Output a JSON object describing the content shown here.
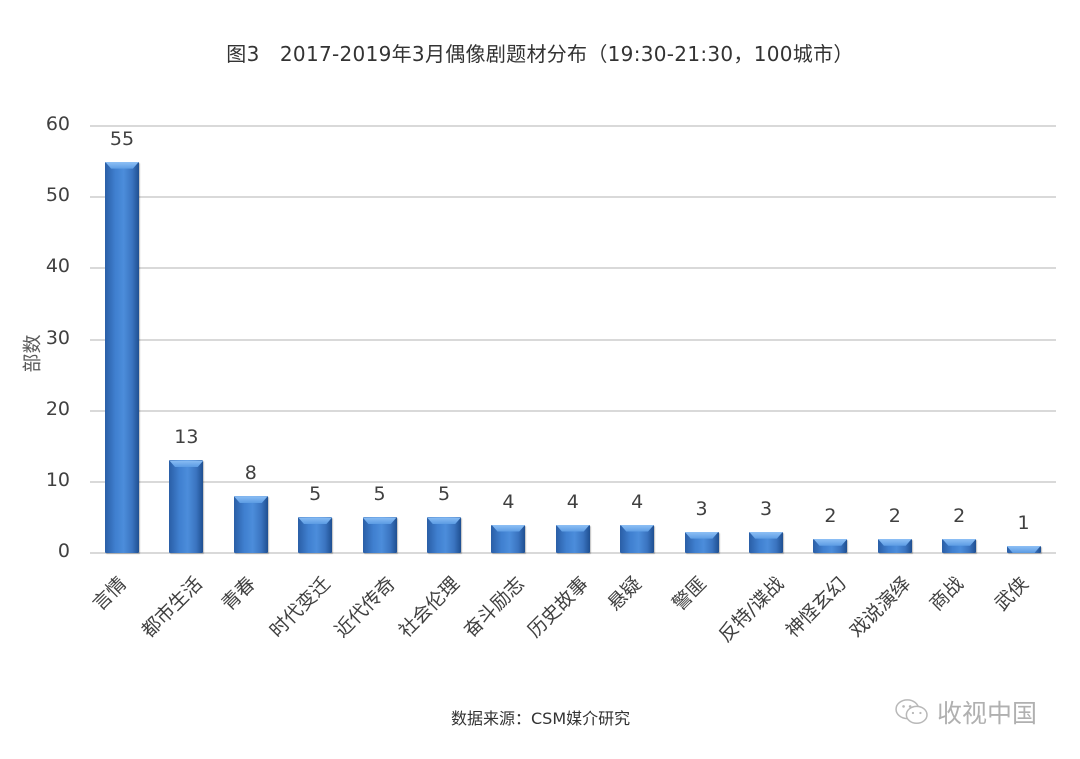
{
  "title": "图3　2017-2019年3月偶像剧题材分布（19:30-21:30，100城市）",
  "footer": {
    "source": "数据来源：CSM媒介研究",
    "watermark": "收视中国",
    "watermark_icon": "wechat-icon"
  },
  "colors": {
    "bar": "#3f7fcf",
    "bar_dark": "#1f4f91",
    "bar_top": "#8ec0f5",
    "grid": "#d9d9d9",
    "text": "#404040"
  },
  "axis": {
    "ylabel": "部数",
    "yticks": [
      "0",
      "10",
      "20",
      "30",
      "40",
      "50",
      "60"
    ]
  },
  "chart_data": {
    "type": "bar",
    "title": "图3　2017-2019年3月偶像剧题材分布（19:30-21:30，100城市）",
    "xlabel": "",
    "ylabel": "部数",
    "ylim": [
      0,
      60
    ],
    "yticks": [
      0,
      10,
      20,
      30,
      40,
      50,
      60
    ],
    "grid": true,
    "legend": "none",
    "categories": [
      "言情",
      "都市生活",
      "青春",
      "时代变迁",
      "近代传奇",
      "社会伦理",
      "奋斗励志",
      "历史故事",
      "悬疑",
      "警匪",
      "反特/谍战",
      "神怪玄幻",
      "戏说演绎",
      "商战",
      "武侠"
    ],
    "values": [
      55,
      13,
      8,
      5,
      5,
      5,
      4,
      4,
      4,
      3,
      3,
      2,
      2,
      2,
      1
    ],
    "data_labels": [
      "55",
      "13",
      "8",
      "5",
      "5",
      "5",
      "4",
      "4",
      "4",
      "3",
      "3",
      "2",
      "2",
      "2",
      "1"
    ],
    "source": "数据来源：CSM媒介研究"
  }
}
